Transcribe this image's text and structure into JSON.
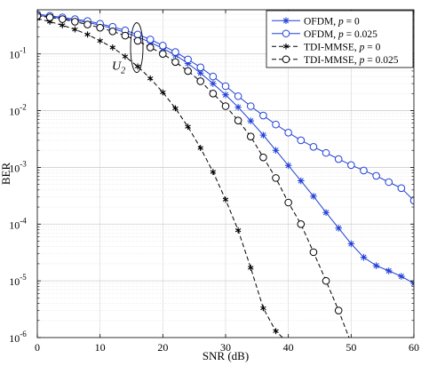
{
  "chart_data": {
    "type": "line",
    "xlabel": "SNR (dB)",
    "ylabel": "BER",
    "xlim": [
      0,
      60
    ],
    "ylim": [
      1e-06,
      0.6
    ],
    "yscale": "log",
    "grid": true,
    "legend_position": "top-right",
    "xticks": [
      0,
      10,
      20,
      30,
      40,
      50,
      60
    ],
    "xtick_labels": [
      "0",
      "10",
      "20",
      "30",
      "40",
      "50",
      "60"
    ],
    "yticks": [
      1e-06,
      1e-05,
      0.0001,
      0.001,
      0.01,
      0.1
    ],
    "ytick_mantissa": [
      "10",
      "10",
      "10",
      "10",
      "10",
      "10"
    ],
    "ytick_exponent": [
      "-6",
      "-5",
      "-4",
      "-3",
      "-2",
      "-1"
    ],
    "annotation": {
      "base": "U",
      "subscript": "2",
      "x": 15,
      "y": 0.09
    },
    "series": [
      {
        "name_prefix": "OFDM, ",
        "name_var": "p",
        "name_suffix": " = 0",
        "color": "#1f3fd6",
        "dash": "solid",
        "marker": "star",
        "x": [
          0,
          2,
          4,
          6,
          8,
          10,
          12,
          14,
          16,
          18,
          20,
          22,
          24,
          26,
          28,
          30,
          32,
          34,
          36,
          38,
          40,
          42,
          44,
          46,
          48,
          50,
          52,
          54,
          56,
          58,
          60
        ],
        "y": [
          0.48,
          0.45,
          0.42,
          0.39,
          0.36,
          0.32,
          0.28,
          0.24,
          0.2,
          0.16,
          0.125,
          0.095,
          0.068,
          0.046,
          0.03,
          0.019,
          0.0115,
          0.0066,
          0.0037,
          0.002,
          0.00108,
          0.00058,
          0.00031,
          0.00016,
          8.5e-05,
          4.5e-05,
          2.6e-05,
          1.85e-05,
          1.5e-05,
          1.2e-05,
          9e-06
        ]
      },
      {
        "name_prefix": "OFDM, ",
        "name_var": "p",
        "name_suffix": " = 0.025",
        "color": "#1f3fd6",
        "dash": "solid",
        "marker": "circle",
        "x": [
          0,
          2,
          4,
          6,
          8,
          10,
          12,
          14,
          16,
          18,
          20,
          22,
          24,
          26,
          28,
          30,
          32,
          34,
          36,
          38,
          40,
          42,
          44,
          46,
          48,
          50,
          52,
          54,
          56,
          58,
          60
        ],
        "y": [
          0.5,
          0.47,
          0.44,
          0.41,
          0.38,
          0.34,
          0.3,
          0.26,
          0.22,
          0.18,
          0.14,
          0.108,
          0.08,
          0.058,
          0.04,
          0.027,
          0.018,
          0.012,
          0.0082,
          0.0057,
          0.0041,
          0.003,
          0.0023,
          0.0018,
          0.0014,
          0.0011,
          0.00088,
          0.00071,
          0.00055,
          0.00043,
          0.00026
        ]
      },
      {
        "name_prefix": "TDI-MMSE, ",
        "name_var": "p",
        "name_suffix": " = 0",
        "color": "#000000",
        "dash": "dashed",
        "marker": "asterisk",
        "x": [
          0,
          2,
          4,
          6,
          8,
          10,
          12,
          14,
          16,
          18,
          20,
          22,
          24,
          26,
          28,
          30,
          32,
          34,
          36,
          38,
          40
        ],
        "y": [
          0.42,
          0.37,
          0.32,
          0.27,
          0.22,
          0.17,
          0.13,
          0.09,
          0.06,
          0.037,
          0.021,
          0.011,
          0.0052,
          0.0022,
          0.00083,
          0.00027,
          7.8e-05,
          1.7e-05,
          3.3e-06,
          1.3e-06,
          8e-07
        ]
      },
      {
        "name_prefix": "TDI-MMSE, ",
        "name_var": "p",
        "name_suffix": " = 0.025",
        "color": "#000000",
        "dash": "dashed",
        "marker": "circle",
        "x": [
          0,
          2,
          4,
          6,
          8,
          10,
          12,
          14,
          16,
          18,
          20,
          22,
          24,
          26,
          28,
          30,
          32,
          34,
          36,
          38,
          40,
          42,
          44,
          46,
          48,
          50
        ],
        "y": [
          0.47,
          0.44,
          0.41,
          0.37,
          0.33,
          0.29,
          0.25,
          0.21,
          0.17,
          0.13,
          0.1,
          0.072,
          0.05,
          0.033,
          0.02,
          0.012,
          0.0067,
          0.0035,
          0.0015,
          0.00065,
          0.00024,
          0.0001,
          3.2e-05,
          1e-05,
          3e-06,
          8e-07
        ]
      }
    ]
  }
}
